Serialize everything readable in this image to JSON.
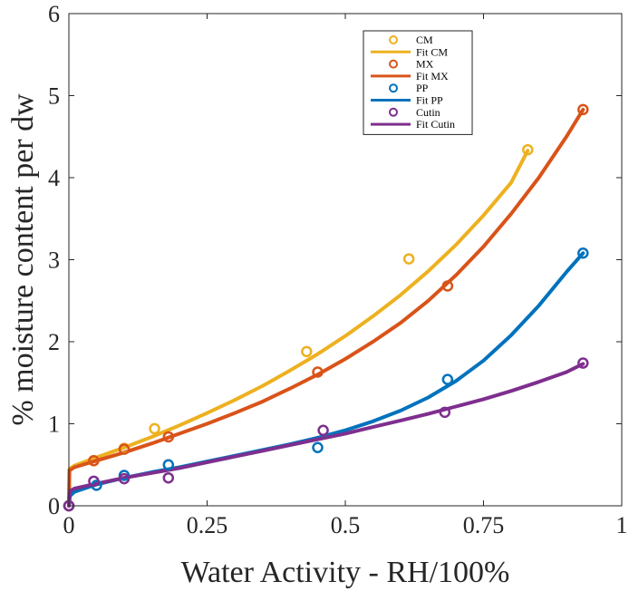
{
  "chart_data": {
    "type": "scatter",
    "title": "",
    "xlabel": "Water Activity - RH/100%",
    "ylabel": "% moisture content per dw",
    "xlim": [
      0,
      1
    ],
    "ylim": [
      0,
      6
    ],
    "xticks": [
      0,
      0.25,
      0.5,
      0.75,
      1
    ],
    "xtick_labels": [
      "0",
      "0.25",
      "0.5",
      "0.75",
      "1"
    ],
    "yticks": [
      0,
      1,
      2,
      3,
      4,
      5,
      6
    ],
    "ytick_labels": [
      "0",
      "1",
      "2",
      "3",
      "4",
      "5",
      "6"
    ],
    "grid": false,
    "legend_position": "top-right (inside)",
    "series": [
      {
        "name": "CM",
        "kind": "points",
        "color": "#EDB120",
        "x": [
          0,
          0.045,
          0.1,
          0.155,
          0.43,
          0.615,
          0.83
        ],
        "y": [
          0,
          0.55,
          0.7,
          0.94,
          1.88,
          3.01,
          4.34
        ]
      },
      {
        "name": "Fit CM",
        "kind": "line",
        "color": "#EDB120",
        "x": [
          0,
          0.001,
          0.01,
          0.05,
          0.1,
          0.15,
          0.2,
          0.25,
          0.3,
          0.35,
          0.4,
          0.45,
          0.5,
          0.55,
          0.6,
          0.65,
          0.7,
          0.75,
          0.8,
          0.83
        ],
        "y": [
          0,
          0.45,
          0.49,
          0.59,
          0.71,
          0.84,
          0.98,
          1.13,
          1.29,
          1.46,
          1.65,
          1.85,
          2.07,
          2.31,
          2.57,
          2.86,
          3.18,
          3.54,
          3.94,
          4.33
        ]
      },
      {
        "name": "MX",
        "kind": "points",
        "color": "#D95319",
        "x": [
          0,
          0.045,
          0.1,
          0.18,
          0.45,
          0.685,
          0.93
        ],
        "y": [
          0,
          0.55,
          0.69,
          0.84,
          1.63,
          2.68,
          4.83
        ]
      },
      {
        "name": "Fit MX",
        "kind": "line",
        "color": "#D95319",
        "x": [
          0,
          0.001,
          0.01,
          0.05,
          0.1,
          0.15,
          0.2,
          0.25,
          0.3,
          0.35,
          0.4,
          0.45,
          0.5,
          0.55,
          0.6,
          0.65,
          0.7,
          0.75,
          0.8,
          0.85,
          0.9,
          0.93
        ],
        "y": [
          0,
          0.43,
          0.47,
          0.55,
          0.65,
          0.76,
          0.88,
          1.0,
          1.13,
          1.27,
          1.43,
          1.6,
          1.79,
          2.0,
          2.23,
          2.5,
          2.81,
          3.16,
          3.56,
          4.0,
          4.5,
          4.83
        ]
      },
      {
        "name": "PP",
        "kind": "points",
        "color": "#0072BD",
        "x": [
          0,
          0.05,
          0.1,
          0.18,
          0.45,
          0.685,
          0.93
        ],
        "y": [
          0,
          0.25,
          0.37,
          0.5,
          0.71,
          1.54,
          3.08
        ]
      },
      {
        "name": "Fit PP",
        "kind": "line",
        "color": "#0072BD",
        "x": [
          0,
          0.002,
          0.01,
          0.05,
          0.1,
          0.15,
          0.2,
          0.25,
          0.3,
          0.35,
          0.4,
          0.45,
          0.5,
          0.55,
          0.6,
          0.65,
          0.7,
          0.75,
          0.8,
          0.85,
          0.9,
          0.93
        ],
        "y": [
          0,
          0.12,
          0.17,
          0.26,
          0.34,
          0.41,
          0.47,
          0.54,
          0.61,
          0.68,
          0.75,
          0.83,
          0.92,
          1.03,
          1.16,
          1.32,
          1.52,
          1.77,
          2.08,
          2.44,
          2.85,
          3.08
        ]
      },
      {
        "name": "Cutin",
        "kind": "points",
        "color": "#7E2F8E",
        "x": [
          0,
          0.045,
          0.1,
          0.18,
          0.46,
          0.68,
          0.93
        ],
        "y": [
          0,
          0.3,
          0.33,
          0.34,
          0.92,
          1.14,
          1.74
        ]
      },
      {
        "name": "Fit Cutin",
        "kind": "line",
        "color": "#7E2F8E",
        "x": [
          0,
          0.002,
          0.01,
          0.05,
          0.1,
          0.15,
          0.2,
          0.25,
          0.3,
          0.35,
          0.4,
          0.45,
          0.5,
          0.55,
          0.6,
          0.65,
          0.7,
          0.75,
          0.8,
          0.85,
          0.9,
          0.93
        ],
        "y": [
          0,
          0.18,
          0.21,
          0.27,
          0.34,
          0.4,
          0.46,
          0.53,
          0.6,
          0.67,
          0.74,
          0.81,
          0.88,
          0.96,
          1.04,
          1.12,
          1.21,
          1.3,
          1.4,
          1.51,
          1.63,
          1.73
        ]
      }
    ]
  }
}
